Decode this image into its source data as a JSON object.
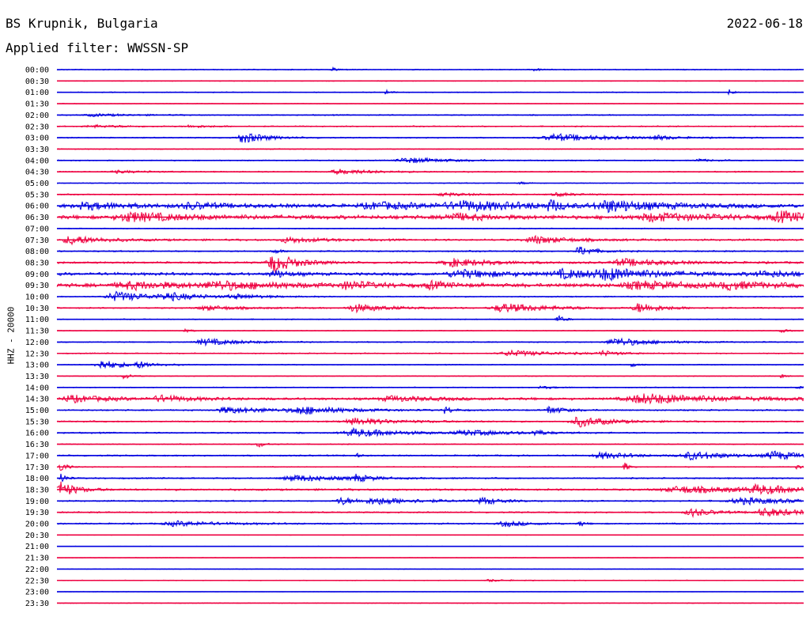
{
  "header": {
    "station": "BS Krupnik, Bulgaria",
    "filter": "Applied filter: WWSSN-SP",
    "date": "2022-06-18"
  },
  "chart_data": {
    "type": "line",
    "title": "BS Krupnik, Bulgaria",
    "subtitle": "Applied filter: WWSSN-SP",
    "date": "2022-06-18",
    "ylabel": "HHZ - 20000",
    "colors": {
      "odd": "#0000e0",
      "even": "#ee0040"
    },
    "traces": [
      {
        "time": "00:00",
        "activity": 0.1,
        "events": [
          {
            "t": 0.37,
            "amp": 0.4,
            "dur": 0.01
          },
          {
            "t": 0.64,
            "amp": 0.3,
            "dur": 0.01
          }
        ]
      },
      {
        "time": "00:30",
        "activity": 0.08,
        "events": []
      },
      {
        "time": "01:00",
        "activity": 0.1,
        "events": [
          {
            "t": 0.44,
            "amp": 0.7,
            "dur": 0.005
          },
          {
            "t": 0.9,
            "amp": 0.7,
            "dur": 0.005
          }
        ]
      },
      {
        "time": "01:30",
        "activity": 0.07,
        "events": []
      },
      {
        "time": "02:00",
        "activity": 0.12,
        "events": [
          {
            "t": 0.05,
            "amp": 0.3,
            "dur": 0.05
          }
        ]
      },
      {
        "time": "02:30",
        "activity": 0.12,
        "events": [
          {
            "t": 0.05,
            "amp": 0.3,
            "dur": 0.05
          },
          {
            "t": 0.18,
            "amp": 0.3,
            "dur": 0.03
          }
        ]
      },
      {
        "time": "03:00",
        "activity": 0.12,
        "events": [
          {
            "t": 0.25,
            "amp": 1.4,
            "dur": 0.03
          },
          {
            "t": 0.67,
            "amp": 0.9,
            "dur": 0.07
          },
          {
            "t": 0.8,
            "amp": 0.6,
            "dur": 0.02
          }
        ]
      },
      {
        "time": "03:30",
        "activity": 0.1,
        "events": []
      },
      {
        "time": "04:00",
        "activity": 0.12,
        "events": [
          {
            "t": 0.47,
            "amp": 0.7,
            "dur": 0.05
          },
          {
            "t": 0.86,
            "amp": 0.3,
            "dur": 0.02
          }
        ]
      },
      {
        "time": "04:30",
        "activity": 0.12,
        "events": [
          {
            "t": 0.38,
            "amp": 0.6,
            "dur": 0.05
          },
          {
            "t": 0.08,
            "amp": 0.3,
            "dur": 0.04
          }
        ]
      },
      {
        "time": "05:00",
        "activity": 0.1,
        "events": [
          {
            "t": 0.62,
            "amp": 0.3,
            "dur": 0.01
          }
        ]
      },
      {
        "time": "05:30",
        "activity": 0.12,
        "events": [
          {
            "t": 0.52,
            "amp": 0.4,
            "dur": 0.04
          },
          {
            "t": 0.67,
            "amp": 0.4,
            "dur": 0.03
          }
        ]
      },
      {
        "time": "06:00",
        "activity": 0.4,
        "events": [
          {
            "t": 0.04,
            "amp": 0.8,
            "dur": 0.05
          },
          {
            "t": 0.18,
            "amp": 0.7,
            "dur": 0.04
          },
          {
            "t": 0.43,
            "amp": 0.7,
            "dur": 0.08
          },
          {
            "t": 0.55,
            "amp": 0.9,
            "dur": 0.1
          },
          {
            "t": 0.66,
            "amp": 1.5,
            "dur": 0.01
          },
          {
            "t": 0.74,
            "amp": 1.3,
            "dur": 0.06
          }
        ]
      },
      {
        "time": "06:30",
        "activity": 0.4,
        "events": [
          {
            "t": 0.1,
            "amp": 1.1,
            "dur": 0.07
          },
          {
            "t": 0.53,
            "amp": 0.9,
            "dur": 0.04
          },
          {
            "t": 0.8,
            "amp": 0.9,
            "dur": 0.08
          },
          {
            "t": 0.97,
            "amp": 1.2,
            "dur": 0.04
          }
        ]
      },
      {
        "time": "07:00",
        "activity": 0.1,
        "events": []
      },
      {
        "time": "07:30",
        "activity": 0.2,
        "events": [
          {
            "t": 0.02,
            "amp": 1.1,
            "dur": 0.04
          },
          {
            "t": 0.31,
            "amp": 0.7,
            "dur": 0.04
          },
          {
            "t": 0.64,
            "amp": 1.0,
            "dur": 0.04
          }
        ]
      },
      {
        "time": "08:00",
        "activity": 0.15,
        "events": [
          {
            "t": 0.29,
            "amp": 0.6,
            "dur": 0.01
          },
          {
            "t": 0.7,
            "amp": 1.2,
            "dur": 0.02
          }
        ]
      },
      {
        "time": "08:30",
        "activity": 0.2,
        "events": [
          {
            "t": 0.29,
            "amp": 2.4,
            "dur": 0.03
          },
          {
            "t": 0.53,
            "amp": 1.0,
            "dur": 0.05
          },
          {
            "t": 0.76,
            "amp": 0.9,
            "dur": 0.06
          }
        ]
      },
      {
        "time": "09:00",
        "activity": 0.3,
        "events": [
          {
            "t": 0.29,
            "amp": 1.0,
            "dur": 0.02
          },
          {
            "t": 0.54,
            "amp": 1.0,
            "dur": 0.06
          },
          {
            "t": 0.68,
            "amp": 1.0,
            "dur": 0.05
          },
          {
            "t": 0.74,
            "amp": 1.2,
            "dur": 0.07
          },
          {
            "t": 0.95,
            "amp": 0.6,
            "dur": 0.07
          }
        ]
      },
      {
        "time": "09:30",
        "activity": 0.4,
        "events": [
          {
            "t": 0.1,
            "amp": 0.8,
            "dur": 0.08
          },
          {
            "t": 0.22,
            "amp": 0.8,
            "dur": 0.08
          },
          {
            "t": 0.39,
            "amp": 0.9,
            "dur": 0.03
          },
          {
            "t": 0.5,
            "amp": 0.9,
            "dur": 0.02
          },
          {
            "t": 0.78,
            "amp": 0.8,
            "dur": 0.08
          },
          {
            "t": 0.9,
            "amp": 0.8,
            "dur": 0.04
          }
        ]
      },
      {
        "time": "10:00",
        "activity": 0.12,
        "events": [
          {
            "t": 0.08,
            "amp": 1.2,
            "dur": 0.05
          },
          {
            "t": 0.15,
            "amp": 0.8,
            "dur": 0.04
          },
          {
            "t": 0.24,
            "amp": 0.5,
            "dur": 0.04
          }
        ]
      },
      {
        "time": "10:30",
        "activity": 0.15,
        "events": [
          {
            "t": 0.2,
            "amp": 0.6,
            "dur": 0.04
          },
          {
            "t": 0.4,
            "amp": 1.0,
            "dur": 0.04
          },
          {
            "t": 0.6,
            "amp": 1.1,
            "dur": 0.06
          },
          {
            "t": 0.78,
            "amp": 1.2,
            "dur": 0.03
          }
        ]
      },
      {
        "time": "11:00",
        "activity": 0.1,
        "events": [
          {
            "t": 0.67,
            "amp": 1.1,
            "dur": 0.008
          }
        ]
      },
      {
        "time": "11:30",
        "activity": 0.08,
        "events": [
          {
            "t": 0.17,
            "amp": 0.4,
            "dur": 0.01
          },
          {
            "t": 0.97,
            "amp": 0.4,
            "dur": 0.01
          }
        ]
      },
      {
        "time": "12:00",
        "activity": 0.12,
        "events": [
          {
            "t": 0.2,
            "amp": 0.8,
            "dur": 0.05
          },
          {
            "t": 0.75,
            "amp": 1.0,
            "dur": 0.05
          }
        ]
      },
      {
        "time": "12:30",
        "activity": 0.12,
        "events": [
          {
            "t": 0.61,
            "amp": 0.7,
            "dur": 0.06
          },
          {
            "t": 0.73,
            "amp": 0.6,
            "dur": 0.02
          }
        ]
      },
      {
        "time": "13:00",
        "activity": 0.1,
        "events": [
          {
            "t": 0.06,
            "amp": 1.2,
            "dur": 0.03
          },
          {
            "t": 0.11,
            "amp": 0.7,
            "dur": 0.02
          },
          {
            "t": 0.77,
            "amp": 0.8,
            "dur": 0.005
          }
        ]
      },
      {
        "time": "13:30",
        "activity": 0.08,
        "events": [
          {
            "t": 0.09,
            "amp": 0.8,
            "dur": 0.01
          },
          {
            "t": 0.97,
            "amp": 0.5,
            "dur": 0.005
          }
        ]
      },
      {
        "time": "14:00",
        "activity": 0.1,
        "events": [
          {
            "t": 0.65,
            "amp": 0.3,
            "dur": 0.02
          },
          {
            "t": 0.99,
            "amp": 0.5,
            "dur": 0.005
          }
        ]
      },
      {
        "time": "14:30",
        "activity": 0.25,
        "events": [
          {
            "t": 0.02,
            "amp": 0.8,
            "dur": 0.05
          },
          {
            "t": 0.14,
            "amp": 0.7,
            "dur": 0.04
          },
          {
            "t": 0.45,
            "amp": 0.6,
            "dur": 0.06
          },
          {
            "t": 0.79,
            "amp": 1.2,
            "dur": 0.1
          }
        ]
      },
      {
        "time": "15:00",
        "activity": 0.15,
        "events": [
          {
            "t": 0.23,
            "amp": 0.8,
            "dur": 0.06
          },
          {
            "t": 0.33,
            "amp": 0.9,
            "dur": 0.06
          },
          {
            "t": 0.52,
            "amp": 0.9,
            "dur": 0.01
          },
          {
            "t": 0.66,
            "amp": 1.0,
            "dur": 0.02
          }
        ]
      },
      {
        "time": "15:30",
        "activity": 0.15,
        "events": [
          {
            "t": 0.4,
            "amp": 0.8,
            "dur": 0.06
          },
          {
            "t": 0.7,
            "amp": 1.3,
            "dur": 0.04
          }
        ]
      },
      {
        "time": "16:00",
        "activity": 0.15,
        "events": [
          {
            "t": 0.4,
            "amp": 1.0,
            "dur": 0.06
          },
          {
            "t": 0.55,
            "amp": 0.6,
            "dur": 0.06
          },
          {
            "t": 0.64,
            "amp": 0.9,
            "dur": 0.01
          }
        ]
      },
      {
        "time": "16:30",
        "activity": 0.1,
        "events": [
          {
            "t": 0.27,
            "amp": 0.8,
            "dur": 0.01
          }
        ]
      },
      {
        "time": "17:00",
        "activity": 0.15,
        "events": [
          {
            "t": 0.4,
            "amp": 0.7,
            "dur": 0.005
          },
          {
            "t": 0.73,
            "amp": 0.8,
            "dur": 0.04
          },
          {
            "t": 0.85,
            "amp": 1.0,
            "dur": 0.05
          },
          {
            "t": 0.96,
            "amp": 1.0,
            "dur": 0.04
          }
        ]
      },
      {
        "time": "17:30",
        "activity": 0.1,
        "events": [
          {
            "t": 0.005,
            "amp": 1.3,
            "dur": 0.008
          },
          {
            "t": 0.76,
            "amp": 1.4,
            "dur": 0.005
          },
          {
            "t": 0.99,
            "amp": 0.8,
            "dur": 0.005
          }
        ]
      },
      {
        "time": "18:00",
        "activity": 0.15,
        "events": [
          {
            "t": 0.005,
            "amp": 1.6,
            "dur": 0.006
          },
          {
            "t": 0.32,
            "amp": 0.8,
            "dur": 0.06
          },
          {
            "t": 0.4,
            "amp": 0.8,
            "dur": 0.02
          }
        ]
      },
      {
        "time": "18:30",
        "activity": 0.2,
        "events": [
          {
            "t": 0.005,
            "amp": 2.0,
            "dur": 0.02
          },
          {
            "t": 0.84,
            "amp": 0.8,
            "dur": 0.1
          },
          {
            "t": 0.94,
            "amp": 0.9,
            "dur": 0.05
          }
        ]
      },
      {
        "time": "19:00",
        "activity": 0.15,
        "events": [
          {
            "t": 0.38,
            "amp": 1.0,
            "dur": 0.02
          },
          {
            "t": 0.43,
            "amp": 0.8,
            "dur": 0.06
          },
          {
            "t": 0.57,
            "amp": 1.0,
            "dur": 0.02
          },
          {
            "t": 0.92,
            "amp": 0.8,
            "dur": 0.07
          }
        ]
      },
      {
        "time": "19:30",
        "activity": 0.15,
        "events": [
          {
            "t": 0.85,
            "amp": 1.0,
            "dur": 0.03
          },
          {
            "t": 0.95,
            "amp": 1.0,
            "dur": 0.05
          }
        ]
      },
      {
        "time": "20:00",
        "activity": 0.15,
        "events": [
          {
            "t": 0.16,
            "amp": 0.6,
            "dur": 0.06
          },
          {
            "t": 0.6,
            "amp": 0.7,
            "dur": 0.03
          },
          {
            "t": 0.7,
            "amp": 0.8,
            "dur": 0.005
          }
        ]
      },
      {
        "time": "20:30",
        "activity": 0.06,
        "events": []
      },
      {
        "time": "21:00",
        "activity": 0.06,
        "events": []
      },
      {
        "time": "21:30",
        "activity": 0.06,
        "events": []
      },
      {
        "time": "22:00",
        "activity": 0.06,
        "events": []
      },
      {
        "time": "22:30",
        "activity": 0.08,
        "events": [
          {
            "t": 0.58,
            "amp": 0.3,
            "dur": 0.02
          }
        ]
      },
      {
        "time": "23:00",
        "activity": 0.06,
        "events": []
      },
      {
        "time": "23:30",
        "activity": 0.08,
        "events": []
      }
    ]
  }
}
